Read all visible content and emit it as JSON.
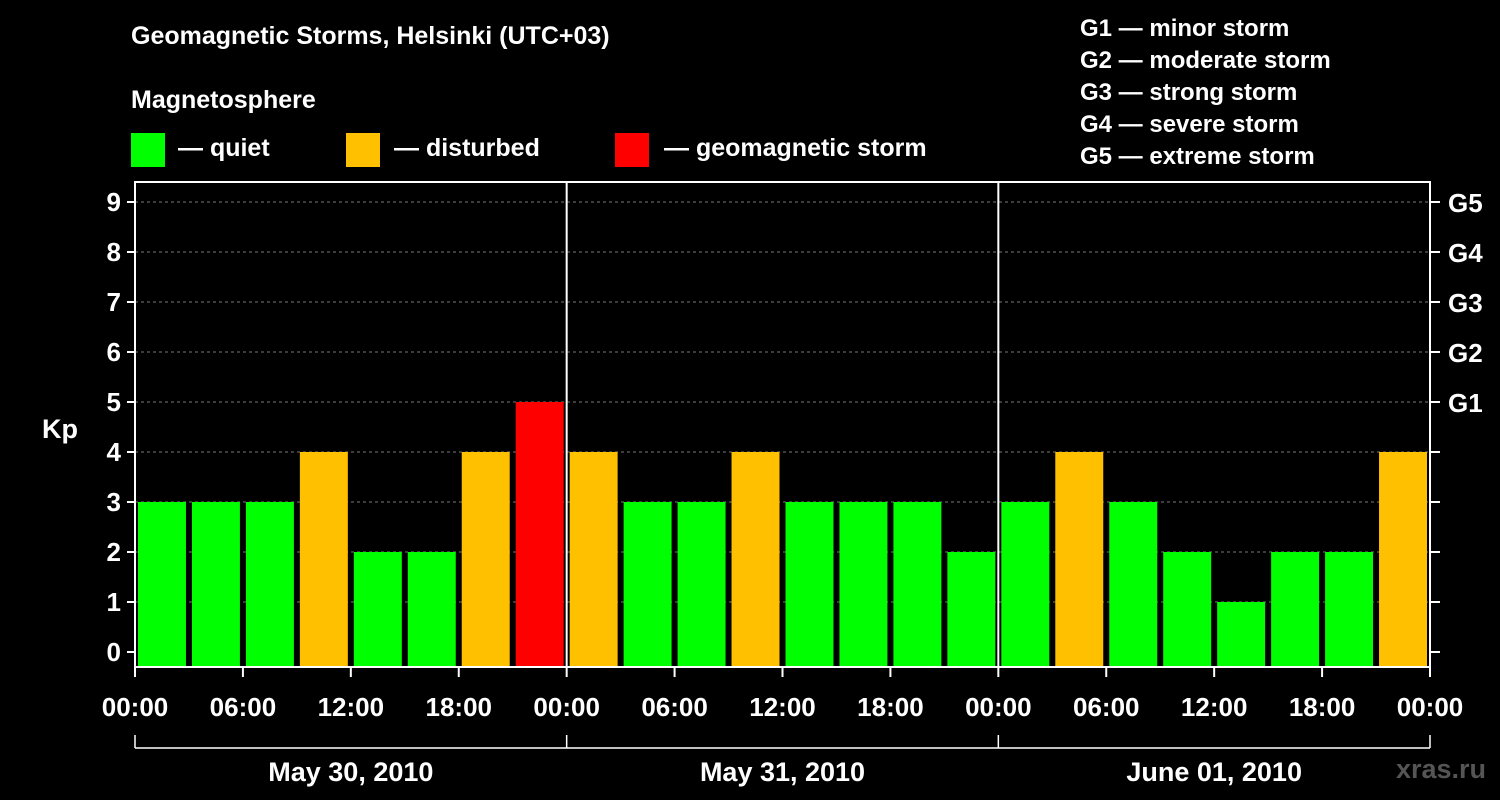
{
  "title": "Geomagnetic Storms, Helsinki (UTC+03)",
  "magnetosphere": {
    "heading": "Magnetosphere",
    "legend": [
      {
        "label": "— quiet",
        "color": "#00ff00"
      },
      {
        "label": "— disturbed",
        "color": "#ffc000"
      },
      {
        "label": "— geomagnetic storm",
        "color": "#ff0000"
      }
    ]
  },
  "g_scale": [
    "G1 — minor storm",
    "G2 — moderate storm",
    "G3 — strong storm",
    "G4 — severe storm",
    "G5 — extreme storm"
  ],
  "watermark": "xras.ru",
  "chart_data": {
    "type": "bar",
    "ylabel": "Kp",
    "ylim": [
      0,
      9
    ],
    "yticks": [
      "0",
      "1",
      "2",
      "3",
      "4",
      "5",
      "6",
      "7",
      "8",
      "9"
    ],
    "right_ticks": [
      {
        "kp": 5,
        "label": "G1"
      },
      {
        "kp": 6,
        "label": "G2"
      },
      {
        "kp": 7,
        "label": "G3"
      },
      {
        "kp": 8,
        "label": "G4"
      },
      {
        "kp": 9,
        "label": "G5"
      }
    ],
    "grid": "horizontal dashed",
    "xtick_labels": [
      "00:00",
      "06:00",
      "12:00",
      "18:00",
      "00:00",
      "06:00",
      "12:00",
      "18:00",
      "00:00",
      "06:00",
      "12:00",
      "18:00",
      "00:00"
    ],
    "days": [
      "May 30, 2010",
      "May 31, 2010",
      "June 01, 2010"
    ],
    "values": [
      3,
      3,
      3,
      4,
      2,
      2,
      4,
      5,
      4,
      3,
      3,
      4,
      3,
      3,
      3,
      2,
      3,
      4,
      3,
      2,
      1,
      2,
      2,
      4
    ],
    "colors": {
      "quiet": "#00ff00",
      "disturbed": "#ffc000",
      "storm": "#ff0000"
    }
  }
}
